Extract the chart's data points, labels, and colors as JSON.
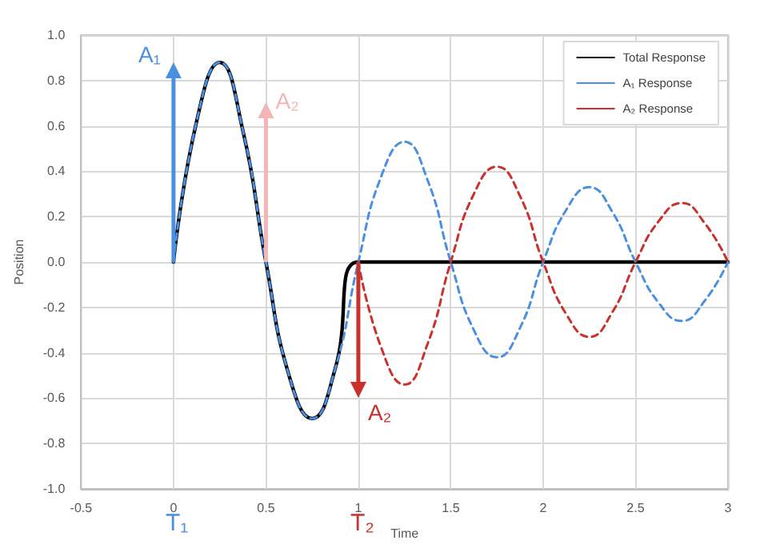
{
  "chart_data": {
    "type": "line",
    "xlabel": "Time",
    "ylabel": "Position",
    "xlim": [
      -0.5,
      3
    ],
    "xticks": [
      -0.5,
      0,
      0.5,
      1,
      1.5,
      2,
      2.5,
      3
    ],
    "ylim": [
      -1,
      1
    ],
    "yticks": [
      {
        "value": -1,
        "label": "-1.0"
      },
      {
        "value": -0.8,
        "label": "-0.8"
      },
      {
        "value": -0.6,
        "label": "-0.6"
      },
      {
        "value": -0.4,
        "label": "-0.4"
      },
      {
        "value": -0.2,
        "label": "-0.2"
      },
      {
        "value": 0,
        "label": "0.0"
      },
      {
        "value": 0.2,
        "label": "0.2"
      },
      {
        "value": 0.4,
        "label": "0.4"
      },
      {
        "value": 0.6,
        "label": "0.6"
      },
      {
        "value": 0.8,
        "label": "0.8"
      },
      {
        "value": 1,
        "label": "1.0"
      }
    ],
    "grid": true,
    "legend": "top right",
    "marker": "none",
    "series": [
      {
        "name": "Total Response",
        "color": "#000000",
        "line_style": "solid",
        "x": [
          0,
          0.125,
          0.25,
          0.375,
          0.5,
          0.625,
          0.75,
          0.875,
          1,
          3
        ],
        "values": [
          0,
          0.62,
          0.88,
          0.58,
          0,
          -0.5,
          -0.69,
          -0.47,
          0,
          0
        ]
      },
      {
        "name": "A₁ Response",
        "color": "#4a8fe0",
        "line_style": "dashed",
        "x": [
          0,
          0.125,
          0.25,
          0.375,
          0.5,
          0.625,
          0.75,
          0.875,
          1,
          1.125,
          1.25,
          1.375,
          1.5,
          1.625,
          1.75,
          1.875,
          2,
          2.125,
          2.25,
          2.375,
          2.5,
          2.625,
          2.75,
          2.875,
          3
        ],
        "values": [
          0,
          0.62,
          0.88,
          0.58,
          0,
          -0.5,
          -0.69,
          -0.47,
          0,
          0.38,
          0.53,
          0.36,
          0,
          -0.3,
          -0.42,
          -0.29,
          0,
          0.23,
          0.33,
          0.22,
          0,
          -0.18,
          -0.26,
          -0.17,
          0
        ]
      },
      {
        "name": "A₂ Response",
        "color": "#c8312c",
        "line_style": "dashed",
        "x": [
          1,
          1.125,
          1.25,
          1.375,
          1.5,
          1.625,
          1.75,
          1.875,
          2,
          2.125,
          2.25,
          2.375,
          2.5,
          2.625,
          2.75,
          2.875,
          3
        ],
        "values": [
          0,
          -0.38,
          -0.54,
          -0.36,
          0,
          0.3,
          0.42,
          0.29,
          0,
          -0.23,
          -0.33,
          -0.22,
          0,
          0.18,
          0.26,
          0.17,
          0
        ]
      }
    ],
    "annotations": [
      {
        "text": "A₁",
        "x": 0,
        "y": 0
      },
      {
        "text": "A₂",
        "x": 0.5,
        "y": 0
      },
      {
        "text": "A₂",
        "x": 1,
        "y": 0
      },
      "T₁",
      "T₂"
    ]
  }
}
